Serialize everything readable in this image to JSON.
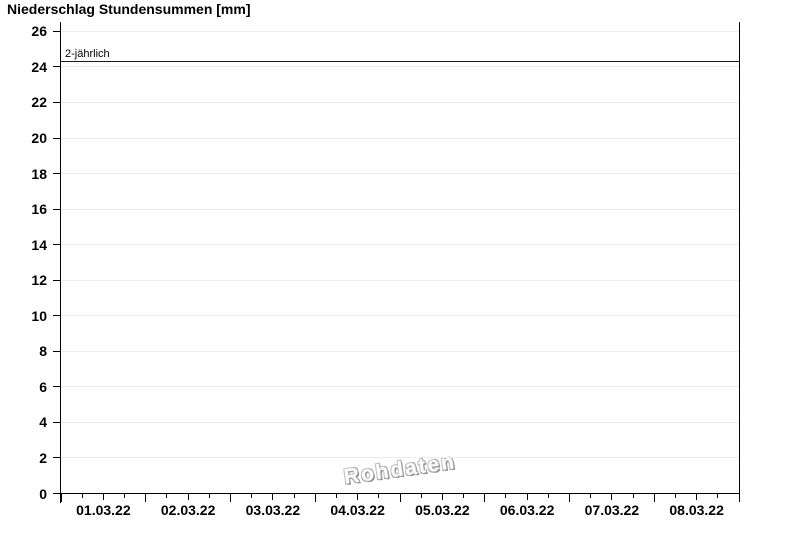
{
  "chart_data": {
    "type": "line",
    "title": "Niederschlag Stundensummen [mm]",
    "xlabel": "",
    "ylabel": "",
    "ylim": [
      0,
      26
    ],
    "yticks": [
      0,
      2,
      4,
      6,
      8,
      10,
      12,
      14,
      16,
      18,
      20,
      22,
      24,
      26
    ],
    "x_categories": [
      "01.03.22",
      "02.03.22",
      "03.03.22",
      "04.03.22",
      "05.03.22",
      "06.03.22",
      "07.03.22",
      "08.03.22"
    ],
    "x_minor_tick_pattern": "ticks every 6 hours; long at midnight, medium at noon, short at 06h/18h",
    "series": [],
    "threshold": {
      "label": "2-jährlich",
      "value": 24.3
    },
    "watermark": "Rohdaten",
    "grid": "horizontal gridlines every 2 mm",
    "legend_position": "none",
    "colors": {
      "background": "#ffffff",
      "axis": "#000000",
      "grid": "#ececec",
      "threshold_line": "#1c1c1c",
      "watermark": "#9c9c9c",
      "text": "#000000"
    }
  }
}
